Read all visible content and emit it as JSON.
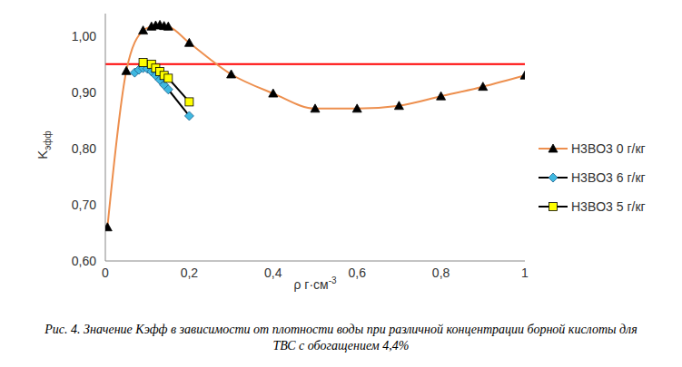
{
  "chart_data": {
    "type": "line",
    "title": "Рис. 4. Значение Kэфф в зависимости от плотности воды при различной концентрации борной кислоты для ТВС с обогащением 4,4%",
    "x_label": "ρ г·см-3",
    "y_label": "Kэфф",
    "xlim": [
      0,
      1
    ],
    "ylim": [
      0.6,
      1.04
    ],
    "xticks": [
      0,
      {
        "value": 0.2,
        "label": "0,2"
      },
      {
        "value": 0.4,
        "label": "0,4"
      },
      {
        "value": 0.6,
        "label": "0,6"
      },
      {
        "value": 0.8,
        "label": "0,8"
      },
      1
    ],
    "yticks": [
      {
        "value": 0.6,
        "label": "0,60"
      },
      {
        "value": 0.7,
        "label": "0,70"
      },
      {
        "value": 0.8,
        "label": "0,80"
      },
      {
        "value": 0.9,
        "label": "0,90"
      },
      {
        "value": 1.0,
        "label": "1,00"
      }
    ],
    "grid": false,
    "legend": "right",
    "reference_line": {
      "y": 0.95,
      "color": "#ff0000"
    },
    "series": [
      {
        "name": "H3BO3 0 г/кг",
        "color": "#ed8f4e",
        "marker": "triangle",
        "line_style": "smooth",
        "x": [
          0.005,
          0.05,
          0.09,
          0.11,
          0.12,
          0.13,
          0.14,
          0.15,
          0.2,
          0.3,
          0.4,
          0.5,
          0.6,
          0.7,
          0.8,
          0.9,
          1.0
        ],
        "values": [
          0.66,
          0.938,
          1.01,
          1.017,
          1.019,
          1.02,
          1.018,
          1.017,
          0.988,
          0.932,
          0.898,
          0.871,
          0.871,
          0.876,
          0.893,
          0.91,
          0.93
        ]
      },
      {
        "name": "H3BO3 6 г/кг",
        "color": "#3fb8e0",
        "marker": "diamond",
        "line_style": "solid",
        "x": [
          0.07,
          0.08,
          0.09,
          0.1,
          0.11,
          0.12,
          0.13,
          0.14,
          0.15,
          0.2
        ],
        "values": [
          0.935,
          0.94,
          0.943,
          0.942,
          0.937,
          0.93,
          0.922,
          0.913,
          0.905,
          0.858
        ]
      },
      {
        "name": "H3BO3 5 г/кг",
        "color": "#ffff00",
        "marker": "square",
        "line_style": "solid",
        "x": [
          0.09,
          0.11,
          0.12,
          0.13,
          0.14,
          0.15,
          0.2
        ],
        "values": [
          0.953,
          0.95,
          0.943,
          0.937,
          0.93,
          0.925,
          0.883
        ]
      }
    ]
  }
}
